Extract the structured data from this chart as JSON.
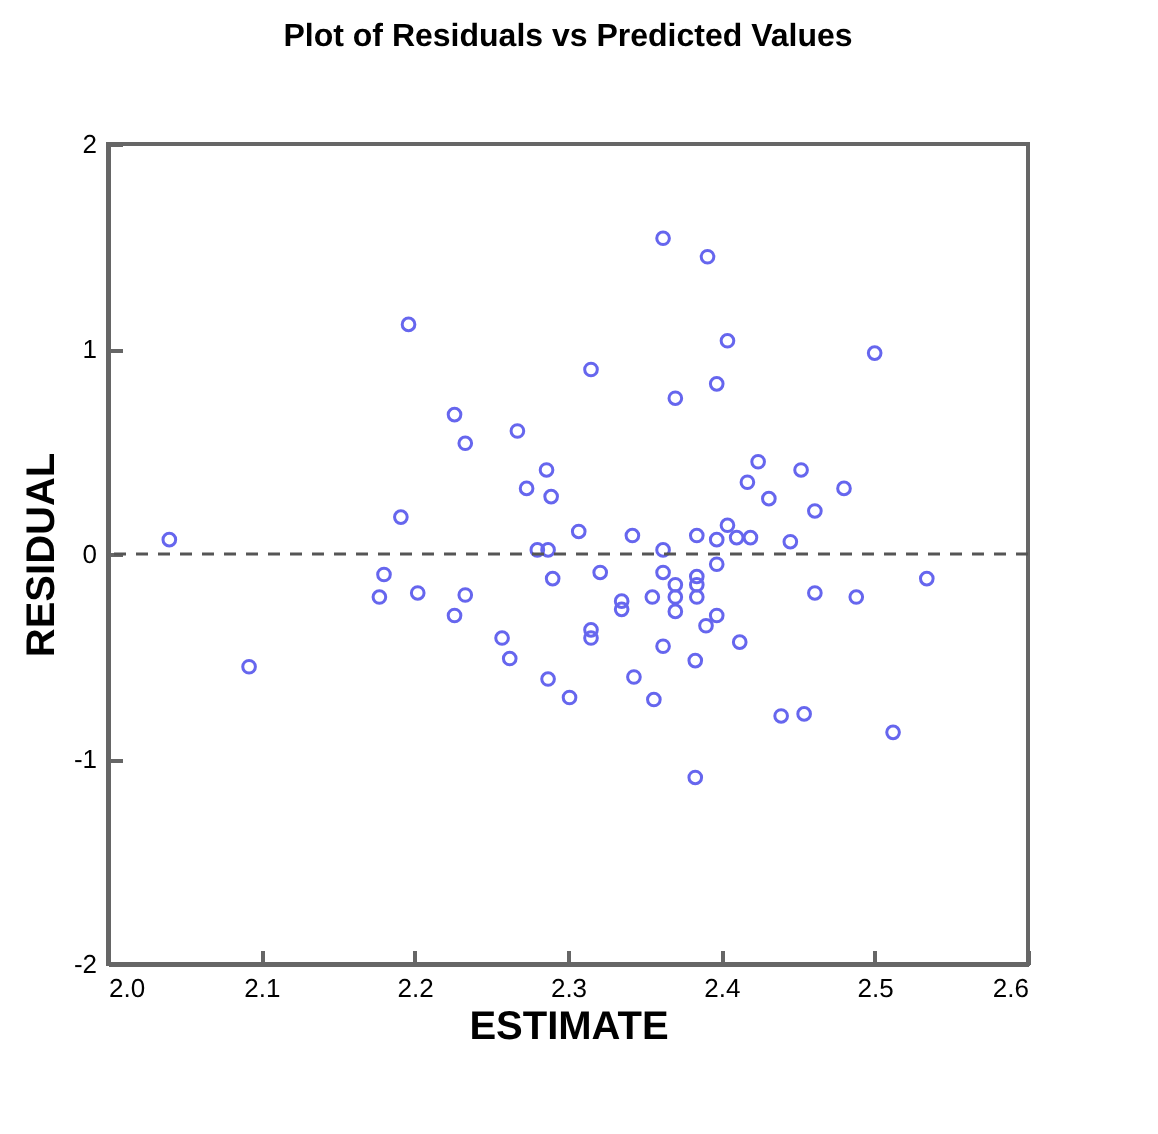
{
  "chart_data": {
    "type": "scatter",
    "title": "Plot of Residuals vs Predicted Values",
    "xlabel": "ESTIMATE",
    "ylabel": "RESIDUAL",
    "x": [
      2.04,
      2.092,
      2.177,
      2.18,
      2.191,
      2.196,
      2.202,
      2.226,
      2.226,
      2.233,
      2.233,
      2.257,
      2.262,
      2.267,
      2.273,
      2.28,
      2.286,
      2.287,
      2.287,
      2.289,
      2.29,
      2.301,
      2.307,
      2.315,
      2.315,
      2.315,
      2.321,
      2.335,
      2.335,
      2.342,
      2.343,
      2.355,
      2.356,
      2.362,
      2.362,
      2.362,
      2.362,
      2.37,
      2.37,
      2.37,
      2.37,
      2.383,
      2.383,
      2.384,
      2.384,
      2.384,
      2.384,
      2.39,
      2.391,
      2.397,
      2.397,
      2.397,
      2.397,
      2.404,
      2.404,
      2.41,
      2.412,
      2.417,
      2.419,
      2.424,
      2.431,
      2.439,
      2.445,
      2.452,
      2.454,
      2.461,
      2.461,
      2.48,
      2.488,
      2.5,
      2.512,
      2.534
    ],
    "series": [
      {
        "color": "#6666ee",
        "values": [
          0.07,
          -0.55,
          -0.21,
          -0.1,
          0.18,
          1.12,
          -0.19,
          0.68,
          -0.3,
          0.54,
          -0.2,
          -0.41,
          -0.51,
          0.6,
          0.32,
          0.02,
          0.41,
          0.02,
          -0.61,
          0.28,
          -0.12,
          -0.7,
          0.11,
          0.9,
          -0.37,
          -0.41,
          -0.09,
          -0.23,
          -0.27,
          0.09,
          -0.6,
          -0.21,
          -0.71,
          1.54,
          0.02,
          -0.09,
          -0.45,
          0.76,
          -0.15,
          -0.21,
          -0.28,
          -0.52,
          -1.09,
          0.09,
          -0.11,
          -0.15,
          -0.21,
          -0.35,
          1.45,
          0.83,
          0.07,
          -0.05,
          -0.3,
          1.04,
          0.14,
          0.08,
          -0.43,
          0.35,
          0.08,
          0.45,
          0.27,
          -0.79,
          0.06,
          0.41,
          -0.78,
          0.21,
          -0.19,
          0.32,
          -0.21,
          0.98,
          -0.87,
          -0.12
        ]
      }
    ],
    "xlim": [
      2.0,
      2.6
    ],
    "xticks": [
      {
        "value": 2.0,
        "label": "2.0"
      },
      2.1,
      2.2,
      2.3,
      2.4,
      2.5,
      2.6
    ],
    "ylim": [
      -2,
      2
    ],
    "yticks": [
      -2,
      -1,
      0,
      1,
      2
    ],
    "ref_lines": [
      {
        "axis": "y",
        "value": 0,
        "line_style": "dashed",
        "color": "#555555"
      }
    ],
    "marker": "circle",
    "grid": false,
    "legend": false
  }
}
